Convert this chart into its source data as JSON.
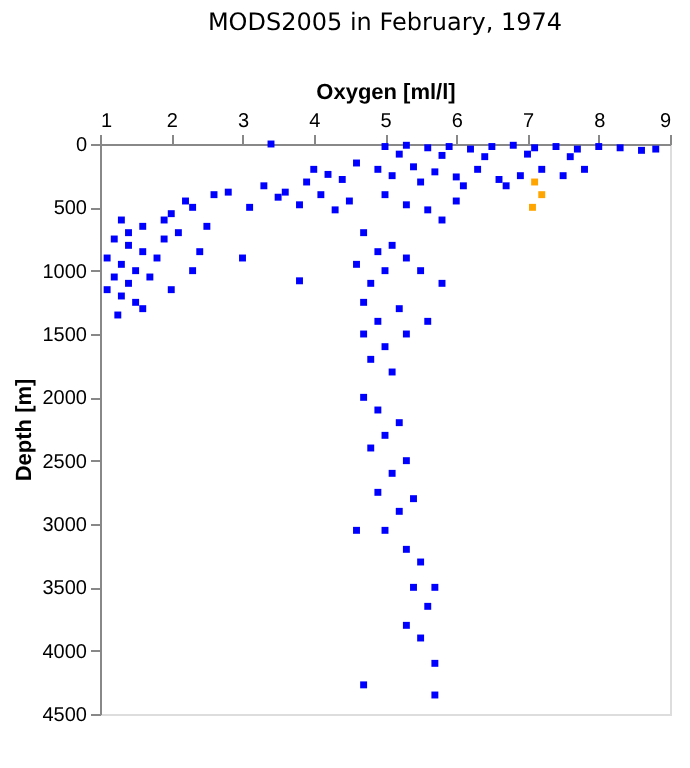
{
  "chart_data": {
    "type": "scatter",
    "title": "MODS2005 in February, 1974",
    "xlabel": "Oxygen [ml/l]",
    "ylabel": "Depth [m]",
    "xlim": [
      1,
      9
    ],
    "xticks": [
      1,
      2,
      3,
      4,
      5,
      6,
      7,
      8,
      9
    ],
    "ylim": [
      4500,
      0
    ],
    "yticks": [
      0,
      500,
      1000,
      1500,
      2000,
      2500,
      3000,
      3500,
      4000,
      4500
    ],
    "grid": false,
    "legend": false,
    "marker": "square",
    "series": [
      {
        "color": "#0000ff",
        "x": [
          5.0,
          5.3,
          5.6,
          5.9,
          6.2,
          6.5,
          6.8,
          7.1,
          7.4,
          7.7,
          8.0,
          8.3,
          8.6,
          8.8,
          5.2,
          5.8,
          6.4,
          7.0,
          7.6,
          3.4,
          4.6,
          4.9,
          5.1,
          5.4,
          5.7,
          6.0,
          6.3,
          6.6,
          6.9,
          7.2,
          7.5,
          7.8,
          4.2,
          4.4,
          3.9,
          4.0,
          5.5,
          6.1,
          6.7,
          3.3,
          3.6,
          4.1,
          4.5,
          2.8,
          3.1,
          3.5,
          3.8,
          4.3,
          5.0,
          5.3,
          5.6,
          6.0,
          5.8,
          2.6,
          2.3,
          2.0,
          2.2,
          1.9,
          1.6,
          1.4,
          1.3,
          1.2,
          1.4,
          1.6,
          1.1,
          1.3,
          1.5,
          1.2,
          1.4,
          1.1,
          1.3,
          1.5,
          1.25,
          1.6,
          2.1,
          2.4,
          1.8,
          2.3,
          2.0,
          3.0,
          3.8,
          2.5,
          1.7,
          1.9,
          4.7,
          4.9,
          4.6,
          5.1,
          5.3,
          4.8,
          5.0,
          4.7,
          4.9,
          5.5,
          5.2,
          4.7,
          4.8,
          5.0,
          5.1,
          4.7,
          4.9,
          5.2,
          4.8,
          5.0,
          5.1,
          5.3,
          4.9,
          5.2,
          5.4,
          5.0,
          4.6,
          5.3,
          5.5,
          5.4,
          5.7,
          5.6,
          5.3,
          5.5,
          5.7,
          4.7,
          5.7,
          5.3,
          5.8,
          5.6
        ],
        "values": [
          20,
          10,
          30,
          20,
          40,
          20,
          10,
          30,
          20,
          40,
          20,
          30,
          50,
          40,
          80,
          90,
          100,
          80,
          100,
          0,
          150,
          200,
          250,
          180,
          220,
          260,
          200,
          280,
          250,
          200,
          250,
          200,
          240,
          280,
          300,
          200,
          300,
          330,
          330,
          330,
          380,
          400,
          450,
          380,
          500,
          420,
          480,
          520,
          400,
          480,
          520,
          450,
          600,
          400,
          500,
          550,
          450,
          600,
          650,
          700,
          600,
          750,
          800,
          850,
          900,
          950,
          1000,
          1050,
          1100,
          1150,
          1200,
          1250,
          1350,
          1300,
          700,
          850,
          900,
          1000,
          1150,
          900,
          1080,
          650,
          1050,
          750,
          700,
          850,
          950,
          800,
          900,
          1100,
          1000,
          1250,
          1400,
          1000,
          1300,
          1500,
          1700,
          1600,
          1800,
          2000,
          2100,
          2200,
          2400,
          2300,
          2600,
          2500,
          2750,
          2900,
          2800,
          3050,
          3050,
          3200,
          3300,
          3500,
          3500,
          3650,
          3800,
          3900,
          4100,
          4270,
          4350,
          1500,
          1100,
          1400
        ]
      },
      {
        "color": "#ffa500",
        "x": [
          7.1,
          7.2,
          7.07
        ],
        "values": [
          300,
          400,
          500
        ]
      }
    ]
  }
}
